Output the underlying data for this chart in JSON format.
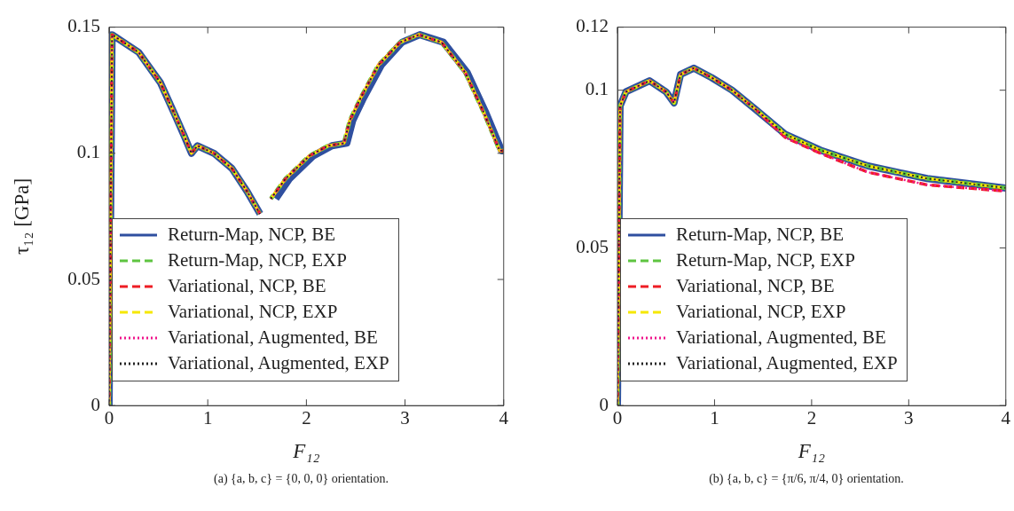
{
  "chart_data": [
    {
      "type": "line",
      "ylabel": "τ₁₂ [GPa]",
      "xlabel": "F₁₂",
      "xlim": [
        0,
        4
      ],
      "xticks": [
        0,
        1,
        2,
        3,
        4
      ],
      "ylim": [
        0,
        0.15
      ],
      "yticks": [
        0,
        0.05,
        0.1,
        0.15
      ],
      "grid": false,
      "legend": "bottom left",
      "marker": "none",
      "annotations": [
        "(a) {a, b, c} = {0, 0, 0} orientation."
      ],
      "x": [
        0,
        0.03,
        0.3,
        0.52,
        0.67,
        0.76,
        0.835,
        0.896,
        1.063,
        1.245,
        1.397,
        1.53,
        1.585,
        1.64,
        1.79,
        2.03,
        2.22,
        2.38,
        2.44,
        2.55,
        2.73,
        2.95,
        3.14,
        3.37,
        3.61,
        3.8,
        3.96,
        4
      ],
      "series": [
        {
          "name": "Return-Map, NCP, BE",
          "color": "#2f4f9f",
          "line_style": "solid",
          "x": [
            0,
            0.03,
            0.3,
            0.52,
            0.67,
            0.76,
            0.835,
            0.896,
            1.063,
            1.245,
            1.397,
            1.53,
            1.6,
            1.69,
            1.83,
            2.07,
            2.26,
            2.41,
            2.47,
            2.58,
            2.76,
            2.97,
            3.15,
            3.39,
            3.63,
            3.82,
            3.98,
            4
          ],
          "values": [
            0,
            0.147,
            0.14,
            0.128,
            0.115,
            0.107,
            0.1,
            0.103,
            0.1,
            0.094,
            0.085,
            0.076,
            null,
            0.082,
            0.09,
            0.099,
            0.103,
            0.104,
            0.113,
            0.122,
            0.135,
            0.144,
            0.147,
            0.144,
            0.132,
            0.116,
            0.101,
            0.101
          ]
        },
        {
          "name": "Return-Map, NCP, EXP",
          "color": "#5ec440",
          "line_style": "dashed",
          "values": [
            0,
            0.147,
            0.14,
            0.128,
            0.115,
            0.107,
            0.1,
            0.103,
            0.1,
            0.094,
            0.085,
            0.076,
            null,
            0.082,
            0.09,
            0.099,
            0.103,
            0.104,
            0.113,
            0.122,
            0.135,
            0.144,
            0.147,
            0.144,
            0.132,
            0.116,
            0.101,
            0.101
          ]
        },
        {
          "name": "Variational, NCP, BE",
          "color": "#ee1d24",
          "line_style": "dashed",
          "values": [
            0,
            0.147,
            0.14,
            0.128,
            0.115,
            0.107,
            0.1,
            0.103,
            0.1,
            0.094,
            0.085,
            0.076,
            null,
            0.082,
            0.09,
            0.099,
            0.103,
            0.104,
            0.113,
            0.122,
            0.135,
            0.144,
            0.147,
            0.144,
            0.132,
            0.116,
            0.101,
            0.101
          ]
        },
        {
          "name": "Variational, NCP, EXP",
          "color": "#f5e800",
          "line_style": "dashed",
          "values": [
            0,
            0.147,
            0.14,
            0.128,
            0.115,
            0.107,
            0.1,
            0.103,
            0.1,
            0.094,
            0.085,
            0.076,
            null,
            0.082,
            0.09,
            0.099,
            0.103,
            0.104,
            0.113,
            0.122,
            0.135,
            0.144,
            0.147,
            0.144,
            0.132,
            0.116,
            0.101,
            0.101
          ]
        },
        {
          "name": "Variational, Augmented, BE",
          "color": "#f0168c",
          "line_style": "dotted",
          "values": [
            0,
            0.147,
            0.14,
            0.128,
            0.115,
            0.107,
            0.1,
            0.103,
            0.1,
            0.094,
            0.085,
            0.076,
            null,
            0.082,
            0.09,
            0.099,
            0.103,
            0.104,
            0.113,
            0.122,
            0.135,
            0.144,
            0.147,
            0.144,
            0.132,
            0.116,
            0.101,
            0.101
          ]
        },
        {
          "name": "Variational, Augmented, EXP",
          "color": "#222222",
          "line_style": "dotted",
          "values": [
            0,
            0.147,
            0.14,
            0.128,
            0.115,
            0.107,
            0.1,
            0.103,
            0.1,
            0.094,
            0.085,
            0.076,
            null,
            0.082,
            0.09,
            0.099,
            0.103,
            0.104,
            0.113,
            0.122,
            0.135,
            0.144,
            0.147,
            0.144,
            0.132,
            0.116,
            0.101,
            0.101
          ]
        }
      ]
    },
    {
      "type": "line",
      "xlabel": "F₁₂",
      "xlim": [
        0,
        4
      ],
      "xticks": [
        0,
        1,
        2,
        3,
        4
      ],
      "ylim": [
        0,
        0.12
      ],
      "yticks": [
        0,
        0.05,
        0.1,
        0.12
      ],
      "grid": false,
      "legend": "bottom left",
      "marker": "none",
      "annotations": [
        "(b) {a, b, c} = {π/6, π/4, 0} orientation."
      ],
      "x": [
        0,
        0.027,
        0.088,
        0.33,
        0.5,
        0.583,
        0.65,
        0.786,
        0.97,
        1.18,
        1.42,
        1.73,
        2.09,
        2.58,
        3.19,
        4
      ],
      "series": [
        {
          "name": "Return-Map, NCP, BE",
          "color": "#2f4f9f",
          "line_style": "solid",
          "values": [
            0,
            0.095,
            0.0995,
            0.103,
            0.0995,
            0.096,
            0.105,
            0.107,
            0.104,
            0.1,
            0.094,
            0.086,
            0.081,
            0.076,
            0.072,
            0.069
          ]
        },
        {
          "name": "Return-Map, NCP, EXP",
          "color": "#5ec440",
          "line_style": "dashed",
          "values": [
            0,
            0.095,
            0.0995,
            0.103,
            0.0995,
            0.096,
            0.105,
            0.107,
            0.104,
            0.1,
            0.094,
            0.086,
            0.081,
            0.076,
            0.072,
            0.069
          ]
        },
        {
          "name": "Variational, NCP, BE",
          "color": "#ee1d24",
          "line_style": "dashed",
          "values": [
            0,
            0.095,
            0.0995,
            0.103,
            0.0995,
            0.096,
            0.105,
            0.107,
            0.104,
            0.1,
            0.094,
            0.085,
            0.08,
            0.074,
            0.07,
            0.068
          ]
        },
        {
          "name": "Variational, NCP, EXP",
          "color": "#f5e800",
          "line_style": "dashed",
          "values": [
            0,
            0.095,
            0.0995,
            0.103,
            0.0995,
            0.096,
            0.105,
            0.107,
            0.104,
            0.1,
            0.094,
            0.086,
            0.081,
            0.076,
            0.072,
            0.069
          ]
        },
        {
          "name": "Variational, Augmented, BE",
          "color": "#f0168c",
          "line_style": "dotted",
          "values": [
            0,
            0.095,
            0.0995,
            0.103,
            0.0995,
            0.096,
            0.105,
            0.107,
            0.104,
            0.1,
            0.094,
            0.085,
            0.08,
            0.074,
            0.07,
            0.068
          ]
        },
        {
          "name": "Variational, Augmented, EXP",
          "color": "#222222",
          "line_style": "dotted",
          "values": [
            0,
            0.095,
            0.0995,
            0.103,
            0.0995,
            0.096,
            0.105,
            0.107,
            0.104,
            0.1,
            0.094,
            0.086,
            0.081,
            0.076,
            0.072,
            0.069
          ]
        }
      ]
    }
  ]
}
